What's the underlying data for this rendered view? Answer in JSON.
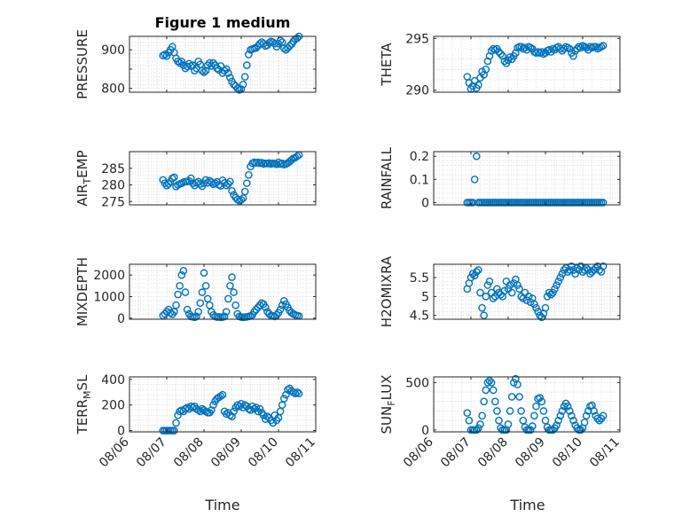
{
  "figure": {
    "title": "Figure 1 medium",
    "xlabel": "Time"
  },
  "style": {
    "marker_color": "#0072BD",
    "axis_color": "#262626",
    "grid_color": "#c8c8c8"
  },
  "chart_data": [
    {
      "type": "scatter",
      "id": "pressure",
      "ylabel": "PRESSURE",
      "ylabel_sub": null,
      "ylim": [
        790,
        935
      ],
      "yticks": [
        800,
        850,
        900
      ],
      "ytick_labels": [
        "800",
        "",
        "900"
      ],
      "xticks_labels": [],
      "grid": true,
      "x": [
        6.9,
        6.95,
        7.0,
        7.05,
        7.1,
        7.15,
        7.2,
        7.25,
        7.3,
        7.35,
        7.4,
        7.45,
        7.5,
        7.55,
        7.6,
        7.65,
        7.7,
        7.75,
        7.8,
        7.85,
        7.9,
        7.95,
        8.0,
        8.05,
        8.1,
        8.15,
        8.2,
        8.25,
        8.3,
        8.35,
        8.4,
        8.45,
        8.5,
        8.55,
        8.6,
        8.65,
        8.7,
        8.75,
        8.8,
        8.85,
        8.9,
        8.95,
        9.0,
        9.05,
        9.1,
        9.15,
        9.2,
        9.25,
        9.3,
        9.35,
        9.4,
        9.45,
        9.5,
        9.55,
        9.6,
        9.65,
        9.7,
        9.75,
        9.8,
        9.85,
        9.9,
        9.95,
        10.0,
        10.05,
        10.1,
        10.15,
        10.2,
        10.25,
        10.3,
        10.35,
        10.4,
        10.45,
        10.5,
        10.55
      ],
      "y": [
        885,
        888,
        884,
        893,
        900,
        908,
        893,
        878,
        870,
        866,
        870,
        860,
        852,
        857,
        864,
        858,
        860,
        846,
        852,
        870,
        862,
        846,
        842,
        846,
        860,
        866,
        858,
        866,
        860,
        852,
        848,
        858,
        840,
        846,
        850,
        840,
        828,
        818,
        810,
        806,
        800,
        796,
        798,
        810,
        830,
        860,
        888,
        900,
        902,
        904,
        905,
        910,
        916,
        920,
        916,
        910,
        912,
        918,
        922,
        920,
        916,
        908,
        916,
        924,
        920,
        904,
        900,
        905,
        910,
        915,
        922,
        928,
        930,
        935
      ]
    },
    {
      "type": "scatter",
      "id": "theta",
      "ylabel": "THETA",
      "ylabel_sub": null,
      "ylim": [
        289.8,
        295.2
      ],
      "yticks": [
        290,
        295
      ],
      "ytick_labels": [
        "290",
        "295"
      ],
      "xticks_labels": [],
      "grid": true,
      "x": [
        6.9,
        6.95,
        7.0,
        7.05,
        7.1,
        7.15,
        7.2,
        7.25,
        7.3,
        7.35,
        7.4,
        7.45,
        7.5,
        7.55,
        7.6,
        7.65,
        7.7,
        7.75,
        7.8,
        7.85,
        7.9,
        7.95,
        8.0,
        8.05,
        8.1,
        8.15,
        8.2,
        8.25,
        8.3,
        8.35,
        8.4,
        8.45,
        8.5,
        8.55,
        8.6,
        8.65,
        8.7,
        8.75,
        8.8,
        8.85,
        8.9,
        8.95,
        9.0,
        9.05,
        9.1,
        9.15,
        9.2,
        9.25,
        9.3,
        9.35,
        9.4,
        9.45,
        9.5,
        9.55,
        9.6,
        9.65,
        9.7,
        9.75,
        9.8,
        9.85,
        9.9,
        9.95,
        10.0,
        10.05,
        10.1,
        10.15,
        10.2,
        10.25,
        10.3,
        10.35,
        10.4,
        10.45,
        10.5,
        10.55
      ],
      "y": [
        291.3,
        290.7,
        290.1,
        290.4,
        290.9,
        290.2,
        290.5,
        291.2,
        291.8,
        291.5,
        292.0,
        292.8,
        293.3,
        293.8,
        294.0,
        293.9,
        294.0,
        293.7,
        293.5,
        293.3,
        292.8,
        292.6,
        292.9,
        293.2,
        293.0,
        293.3,
        293.6,
        294.1,
        294.2,
        294.2,
        294.0,
        294.1,
        293.9,
        294.2,
        294.1,
        294.0,
        293.7,
        293.6,
        293.7,
        293.6,
        293.7,
        293.5,
        293.6,
        293.8,
        293.9,
        293.7,
        294.0,
        293.9,
        294.1,
        294.2,
        294.0,
        293.8,
        294.0,
        294.2,
        294.1,
        294.0,
        293.6,
        293.3,
        293.8,
        294.0,
        294.2,
        294.1,
        294.3,
        294.2,
        294.1,
        293.9,
        294.2,
        294.1,
        294.2,
        294.2,
        294.0,
        294.1,
        294.2,
        294.3
      ]
    },
    {
      "type": "scatter",
      "id": "air_temp",
      "ylabel": "AIR",
      "ylabel_sub": "T",
      "ylabel_rest": "EMP",
      "ylim": [
        274,
        290
      ],
      "yticks": [
        275,
        280,
        285
      ],
      "ytick_labels": [
        "275",
        "280",
        "285"
      ],
      "xticks_labels": [],
      "grid": true,
      "x": [
        6.9,
        6.95,
        7.0,
        7.05,
        7.1,
        7.15,
        7.2,
        7.25,
        7.3,
        7.35,
        7.4,
        7.45,
        7.5,
        7.55,
        7.6,
        7.65,
        7.7,
        7.75,
        7.8,
        7.85,
        7.9,
        7.95,
        8.0,
        8.05,
        8.1,
        8.15,
        8.2,
        8.25,
        8.3,
        8.35,
        8.4,
        8.45,
        8.5,
        8.55,
        8.6,
        8.65,
        8.7,
        8.75,
        8.8,
        8.85,
        8.9,
        8.95,
        9.0,
        9.05,
        9.1,
        9.15,
        9.2,
        9.25,
        9.3,
        9.35,
        9.4,
        9.45,
        9.5,
        9.55,
        9.6,
        9.65,
        9.7,
        9.75,
        9.8,
        9.85,
        9.9,
        9.95,
        10.0,
        10.05,
        10.1,
        10.15,
        10.2,
        10.25,
        10.3,
        10.35,
        10.4,
        10.45,
        10.5,
        10.55
      ],
      "y": [
        281.5,
        280.5,
        279.8,
        280.3,
        281.0,
        282.0,
        282.3,
        279.5,
        280.0,
        280.3,
        280.5,
        280.8,
        281.0,
        281.0,
        281.2,
        282.0,
        280.5,
        279.8,
        280.6,
        281.0,
        280.3,
        279.6,
        280.5,
        281.5,
        280.6,
        281.3,
        280.8,
        280.2,
        280.5,
        280.9,
        280.0,
        279.7,
        281.4,
        280.6,
        279.8,
        280.3,
        281.0,
        278.2,
        277.0,
        276.2,
        275.6,
        275.2,
        275.5,
        276.0,
        278.0,
        280.5,
        283.0,
        285.5,
        286.5,
        286.8,
        286.6,
        286.8,
        286.5,
        286.7,
        286.3,
        286.5,
        286.4,
        286.6,
        286.3,
        286.5,
        286.4,
        286.2,
        286.8,
        286.3,
        286.5,
        286.1,
        286.3,
        286.6,
        287.0,
        287.5,
        288.0,
        288.2,
        288.6,
        289.0
      ]
    },
    {
      "type": "scatter",
      "id": "rainfall",
      "ylabel": "RAINFALL",
      "ylabel_sub": null,
      "ylim": [
        -0.01,
        0.22
      ],
      "yticks": [
        0,
        0.1,
        0.2
      ],
      "ytick_labels": [
        "0",
        "0.1",
        "0.2"
      ],
      "xticks_labels": [],
      "grid": true,
      "x": [
        6.9,
        6.95,
        7.0,
        7.05,
        7.1,
        7.15,
        7.2,
        7.25,
        7.3,
        7.35,
        7.4,
        7.45,
        7.5,
        7.55,
        7.6,
        7.65,
        7.7,
        7.75,
        7.8,
        7.85,
        7.9,
        7.95,
        8.0,
        8.05,
        8.1,
        8.15,
        8.2,
        8.25,
        8.3,
        8.35,
        8.4,
        8.45,
        8.5,
        8.55,
        8.6,
        8.65,
        8.7,
        8.75,
        8.8,
        8.85,
        8.9,
        8.95,
        9.0,
        9.05,
        9.1,
        9.15,
        9.2,
        9.25,
        9.3,
        9.35,
        9.4,
        9.45,
        9.5,
        9.55,
        9.6,
        9.65,
        9.7,
        9.75,
        9.8,
        9.85,
        9.9,
        9.95,
        10.0,
        10.05,
        10.1,
        10.15,
        10.2,
        10.25,
        10.3,
        10.35,
        10.4,
        10.45,
        10.5,
        10.55
      ],
      "y": [
        0,
        0,
        0,
        0,
        0.1,
        0.2,
        0,
        0,
        0,
        0,
        0,
        0,
        0,
        0,
        0,
        0,
        0,
        0,
        0,
        0,
        0,
        0,
        0,
        0,
        0,
        0,
        0,
        0,
        0,
        0,
        0,
        0,
        0,
        0,
        0,
        0,
        0,
        0,
        0,
        0,
        0,
        0,
        0,
        0,
        0,
        0,
        0,
        0,
        0,
        0,
        0,
        0,
        0,
        0,
        0,
        0,
        0,
        0,
        0,
        0,
        0,
        0,
        0,
        0,
        0,
        0,
        0,
        0,
        0,
        0,
        0,
        0,
        0,
        0
      ]
    },
    {
      "type": "scatter",
      "id": "mixdepth",
      "ylabel": "MIXDEPTH",
      "ylabel_sub": null,
      "ylim": [
        -50,
        2500
      ],
      "yticks": [
        0,
        1000,
        2000
      ],
      "ytick_labels": [
        "0",
        "1000",
        "2000"
      ],
      "xticks_labels": [],
      "grid": true,
      "x": [
        6.9,
        6.95,
        7.0,
        7.05,
        7.1,
        7.15,
        7.2,
        7.25,
        7.3,
        7.35,
        7.4,
        7.45,
        7.5,
        7.55,
        7.6,
        7.65,
        7.7,
        7.75,
        7.8,
        7.85,
        7.9,
        7.95,
        8.0,
        8.05,
        8.1,
        8.15,
        8.2,
        8.25,
        8.3,
        8.35,
        8.4,
        8.45,
        8.5,
        8.55,
        8.6,
        8.65,
        8.7,
        8.75,
        8.8,
        8.85,
        8.9,
        8.95,
        9.0,
        9.05,
        9.1,
        9.15,
        9.2,
        9.25,
        9.3,
        9.35,
        9.4,
        9.45,
        9.5,
        9.55,
        9.6,
        9.65,
        9.7,
        9.75,
        9.8,
        9.85,
        9.9,
        9.95,
        10.0,
        10.05,
        10.1,
        10.15,
        10.2,
        10.25,
        10.3,
        10.35,
        10.4,
        10.45,
        10.5,
        10.55
      ],
      "y": [
        120,
        200,
        300,
        400,
        250,
        180,
        300,
        600,
        1100,
        1500,
        2000,
        2200,
        1200,
        400,
        200,
        80,
        60,
        40,
        80,
        300,
        700,
        1200,
        2100,
        1500,
        900,
        600,
        300,
        150,
        80,
        50,
        60,
        40,
        50,
        80,
        300,
        900,
        1500,
        1900,
        1200,
        600,
        200,
        80,
        50,
        40,
        50,
        60,
        80,
        100,
        150,
        300,
        400,
        500,
        600,
        700,
        650,
        500,
        300,
        200,
        120,
        100,
        80,
        150,
        250,
        400,
        600,
        800,
        650,
        500,
        350,
        250,
        200,
        150,
        120,
        100
      ]
    },
    {
      "type": "scatter",
      "id": "h2omixra",
      "ylabel": "H2OMIXRA",
      "ylabel_sub": null,
      "ylim": [
        4.4,
        5.85
      ],
      "yticks": [
        4.5,
        5,
        5.5
      ],
      "ytick_labels": [
        "4.5",
        "5",
        "5.5"
      ],
      "xticks_labels": [],
      "grid": true,
      "x": [
        6.9,
        6.95,
        7.0,
        7.05,
        7.1,
        7.15,
        7.2,
        7.25,
        7.3,
        7.35,
        7.4,
        7.45,
        7.5,
        7.55,
        7.6,
        7.65,
        7.7,
        7.75,
        7.8,
        7.85,
        7.9,
        7.95,
        8.0,
        8.05,
        8.1,
        8.15,
        8.2,
        8.25,
        8.3,
        8.35,
        8.4,
        8.45,
        8.5,
        8.55,
        8.6,
        8.65,
        8.7,
        8.75,
        8.8,
        8.85,
        8.9,
        8.95,
        9.0,
        9.05,
        9.1,
        9.15,
        9.2,
        9.25,
        9.3,
        9.35,
        9.4,
        9.45,
        9.5,
        9.55,
        9.6,
        9.65,
        9.7,
        9.75,
        9.8,
        9.85,
        9.9,
        9.95,
        10.0,
        10.05,
        10.1,
        10.15,
        10.2,
        10.25,
        10.3,
        10.35,
        10.4,
        10.45,
        10.5,
        10.55
      ],
      "y": [
        5.2,
        5.35,
        5.5,
        5.6,
        5.55,
        5.65,
        5.7,
        5.1,
        4.7,
        4.5,
        5.0,
        5.3,
        5.4,
        5.1,
        4.95,
        5.0,
        5.2,
        5.1,
        5.05,
        5.0,
        5.15,
        5.4,
        5.2,
        5.3,
        5.1,
        5.35,
        5.45,
        5.3,
        5.2,
        5.0,
        4.95,
        5.1,
        4.9,
        5.0,
        4.85,
        4.95,
        4.8,
        4.7,
        4.6,
        4.5,
        4.45,
        4.55,
        4.7,
        5.0,
        5.1,
        5.05,
        5.1,
        5.2,
        5.3,
        5.4,
        5.5,
        5.6,
        5.7,
        5.75,
        5.65,
        5.7,
        5.8,
        5.7,
        5.6,
        5.75,
        5.7,
        5.8,
        5.65,
        5.7,
        5.75,
        5.7,
        5.6,
        5.65,
        5.7,
        5.75,
        5.8,
        5.7,
        5.65,
        5.8
      ]
    },
    {
      "type": "scatter",
      "id": "terr_msl",
      "ylabel": "TERR",
      "ylabel_sub": "M",
      "ylabel_rest": "SL",
      "ylim": [
        -10,
        420
      ],
      "yticks": [
        0,
        200,
        400
      ],
      "ytick_labels": [
        "0",
        "200",
        "400"
      ],
      "xticks": [
        6,
        7,
        8,
        9,
        10,
        11
      ],
      "xticks_labels": [
        "08/06",
        "08/07",
        "08/08",
        "08/09",
        "08/10",
        "08/11"
      ],
      "grid": true,
      "x": [
        6.9,
        6.95,
        7.0,
        7.05,
        7.1,
        7.15,
        7.2,
        7.25,
        7.3,
        7.35,
        7.4,
        7.45,
        7.5,
        7.55,
        7.6,
        7.65,
        7.7,
        7.75,
        7.8,
        7.85,
        7.9,
        7.95,
        8.0,
        8.05,
        8.1,
        8.15,
        8.2,
        8.25,
        8.3,
        8.35,
        8.4,
        8.45,
        8.5,
        8.55,
        8.6,
        8.65,
        8.7,
        8.75,
        8.8,
        8.85,
        8.9,
        8.95,
        9.0,
        9.05,
        9.1,
        9.15,
        9.2,
        9.25,
        9.3,
        9.35,
        9.4,
        9.45,
        9.5,
        9.55,
        9.6,
        9.65,
        9.7,
        9.75,
        9.8,
        9.85,
        9.9,
        9.95,
        10.0,
        10.05,
        10.1,
        10.15,
        10.2,
        10.25,
        10.3,
        10.35,
        10.4,
        10.45,
        10.5,
        10.55
      ],
      "y": [
        0,
        0,
        0,
        0,
        0,
        0,
        0,
        60,
        120,
        150,
        160,
        150,
        170,
        180,
        170,
        190,
        180,
        190,
        170,
        160,
        150,
        170,
        160,
        150,
        140,
        140,
        160,
        200,
        230,
        250,
        260,
        270,
        280,
        150,
        130,
        140,
        120,
        110,
        150,
        180,
        200,
        190,
        210,
        180,
        200,
        190,
        170,
        160,
        190,
        170,
        180,
        150,
        170,
        140,
        120,
        90,
        110,
        100,
        80,
        60,
        120,
        80,
        100,
        150,
        200,
        250,
        280,
        320,
        330,
        310,
        300,
        290,
        300,
        290
      ]
    },
    {
      "type": "scatter",
      "id": "sun_flux",
      "ylabel": "SUN",
      "ylabel_sub": "F",
      "ylabel_rest": "LUX",
      "ylim": [
        -20,
        560
      ],
      "yticks": [
        0,
        500
      ],
      "ytick_labels": [
        "0",
        "500"
      ],
      "xticks": [
        6,
        7,
        8,
        9,
        10,
        11
      ],
      "xticks_labels": [
        "08/06",
        "08/07",
        "08/08",
        "08/09",
        "08/10",
        "08/11"
      ],
      "grid": true,
      "x": [
        6.9,
        6.95,
        7.0,
        7.05,
        7.1,
        7.15,
        7.2,
        7.25,
        7.3,
        7.35,
        7.4,
        7.45,
        7.5,
        7.55,
        7.6,
        7.65,
        7.7,
        7.75,
        7.8,
        7.85,
        7.9,
        7.95,
        8.0,
        8.05,
        8.1,
        8.15,
        8.2,
        8.25,
        8.3,
        8.35,
        8.4,
        8.45,
        8.5,
        8.55,
        8.6,
        8.65,
        8.7,
        8.75,
        8.8,
        8.85,
        8.9,
        8.95,
        9.0,
        9.05,
        9.1,
        9.15,
        9.2,
        9.25,
        9.3,
        9.35,
        9.4,
        9.45,
        9.5,
        9.55,
        9.6,
        9.65,
        9.7,
        9.75,
        9.8,
        9.85,
        9.9,
        9.95,
        10.0,
        10.05,
        10.1,
        10.15,
        10.2,
        10.25,
        10.3,
        10.35,
        10.4,
        10.45,
        10.5,
        10.55
      ],
      "y": [
        180,
        100,
        0,
        0,
        0,
        0,
        20,
        60,
        150,
        300,
        420,
        500,
        520,
        500,
        420,
        300,
        200,
        100,
        20,
        0,
        0,
        0,
        60,
        200,
        350,
        500,
        540,
        480,
        350,
        200,
        100,
        30,
        0,
        0,
        0,
        40,
        150,
        250,
        330,
        340,
        300,
        200,
        100,
        30,
        0,
        0,
        0,
        20,
        50,
        100,
        150,
        200,
        250,
        280,
        250,
        200,
        150,
        100,
        50,
        20,
        0,
        0,
        20,
        80,
        150,
        200,
        250,
        260,
        200,
        150,
        120,
        100,
        120,
        150
      ]
    }
  ]
}
